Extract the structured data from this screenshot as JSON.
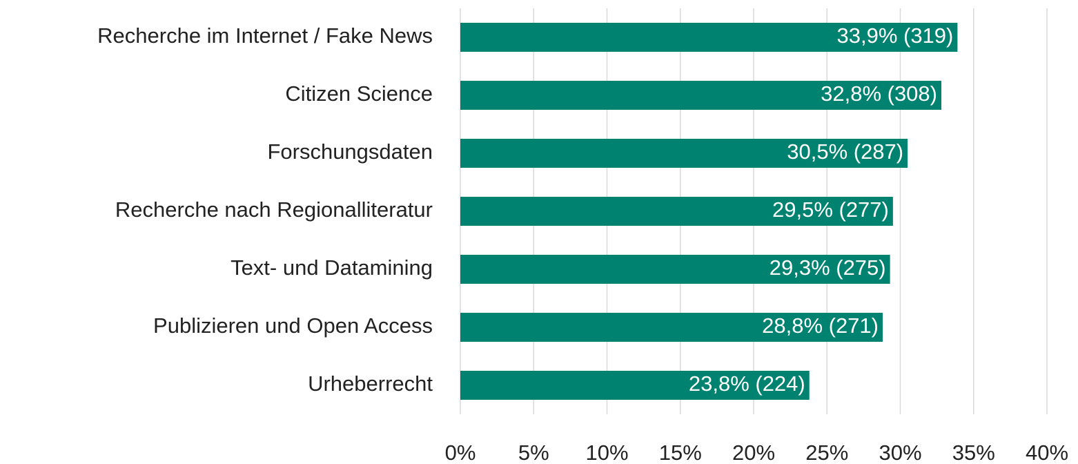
{
  "chart_data": {
    "type": "bar",
    "orientation": "horizontal",
    "categories": [
      "Recherche im Internet / Fake News",
      "Citizen Science",
      "Forschungsdaten",
      "Recherche nach Regionalliteratur",
      "Text- und Datamining",
      "Publizieren und Open Access",
      "Urheberrecht"
    ],
    "values": [
      33.9,
      32.8,
      30.5,
      29.5,
      29.3,
      28.8,
      23.8
    ],
    "value_labels": [
      "33,9% (319)",
      "32,8% (308)",
      "30,5% (287)",
      "29,5% (277)",
      "29,3% (275)",
      "28,8% (271)",
      "23,8% (224)"
    ],
    "color": "#008270",
    "xlim": [
      0,
      40
    ],
    "xticks": [
      {
        "value": 0,
        "label": "0%"
      },
      {
        "value": 5,
        "label": "5%"
      },
      {
        "value": 10,
        "label": "10%"
      },
      {
        "value": 15,
        "label": "15%"
      },
      {
        "value": 20,
        "label": "20%"
      },
      {
        "value": 25,
        "label": "25%"
      },
      {
        "value": 30,
        "label": "30%"
      },
      {
        "value": 35,
        "label": "35%"
      },
      {
        "value": 40,
        "label": "40%"
      }
    ],
    "grid": true
  }
}
